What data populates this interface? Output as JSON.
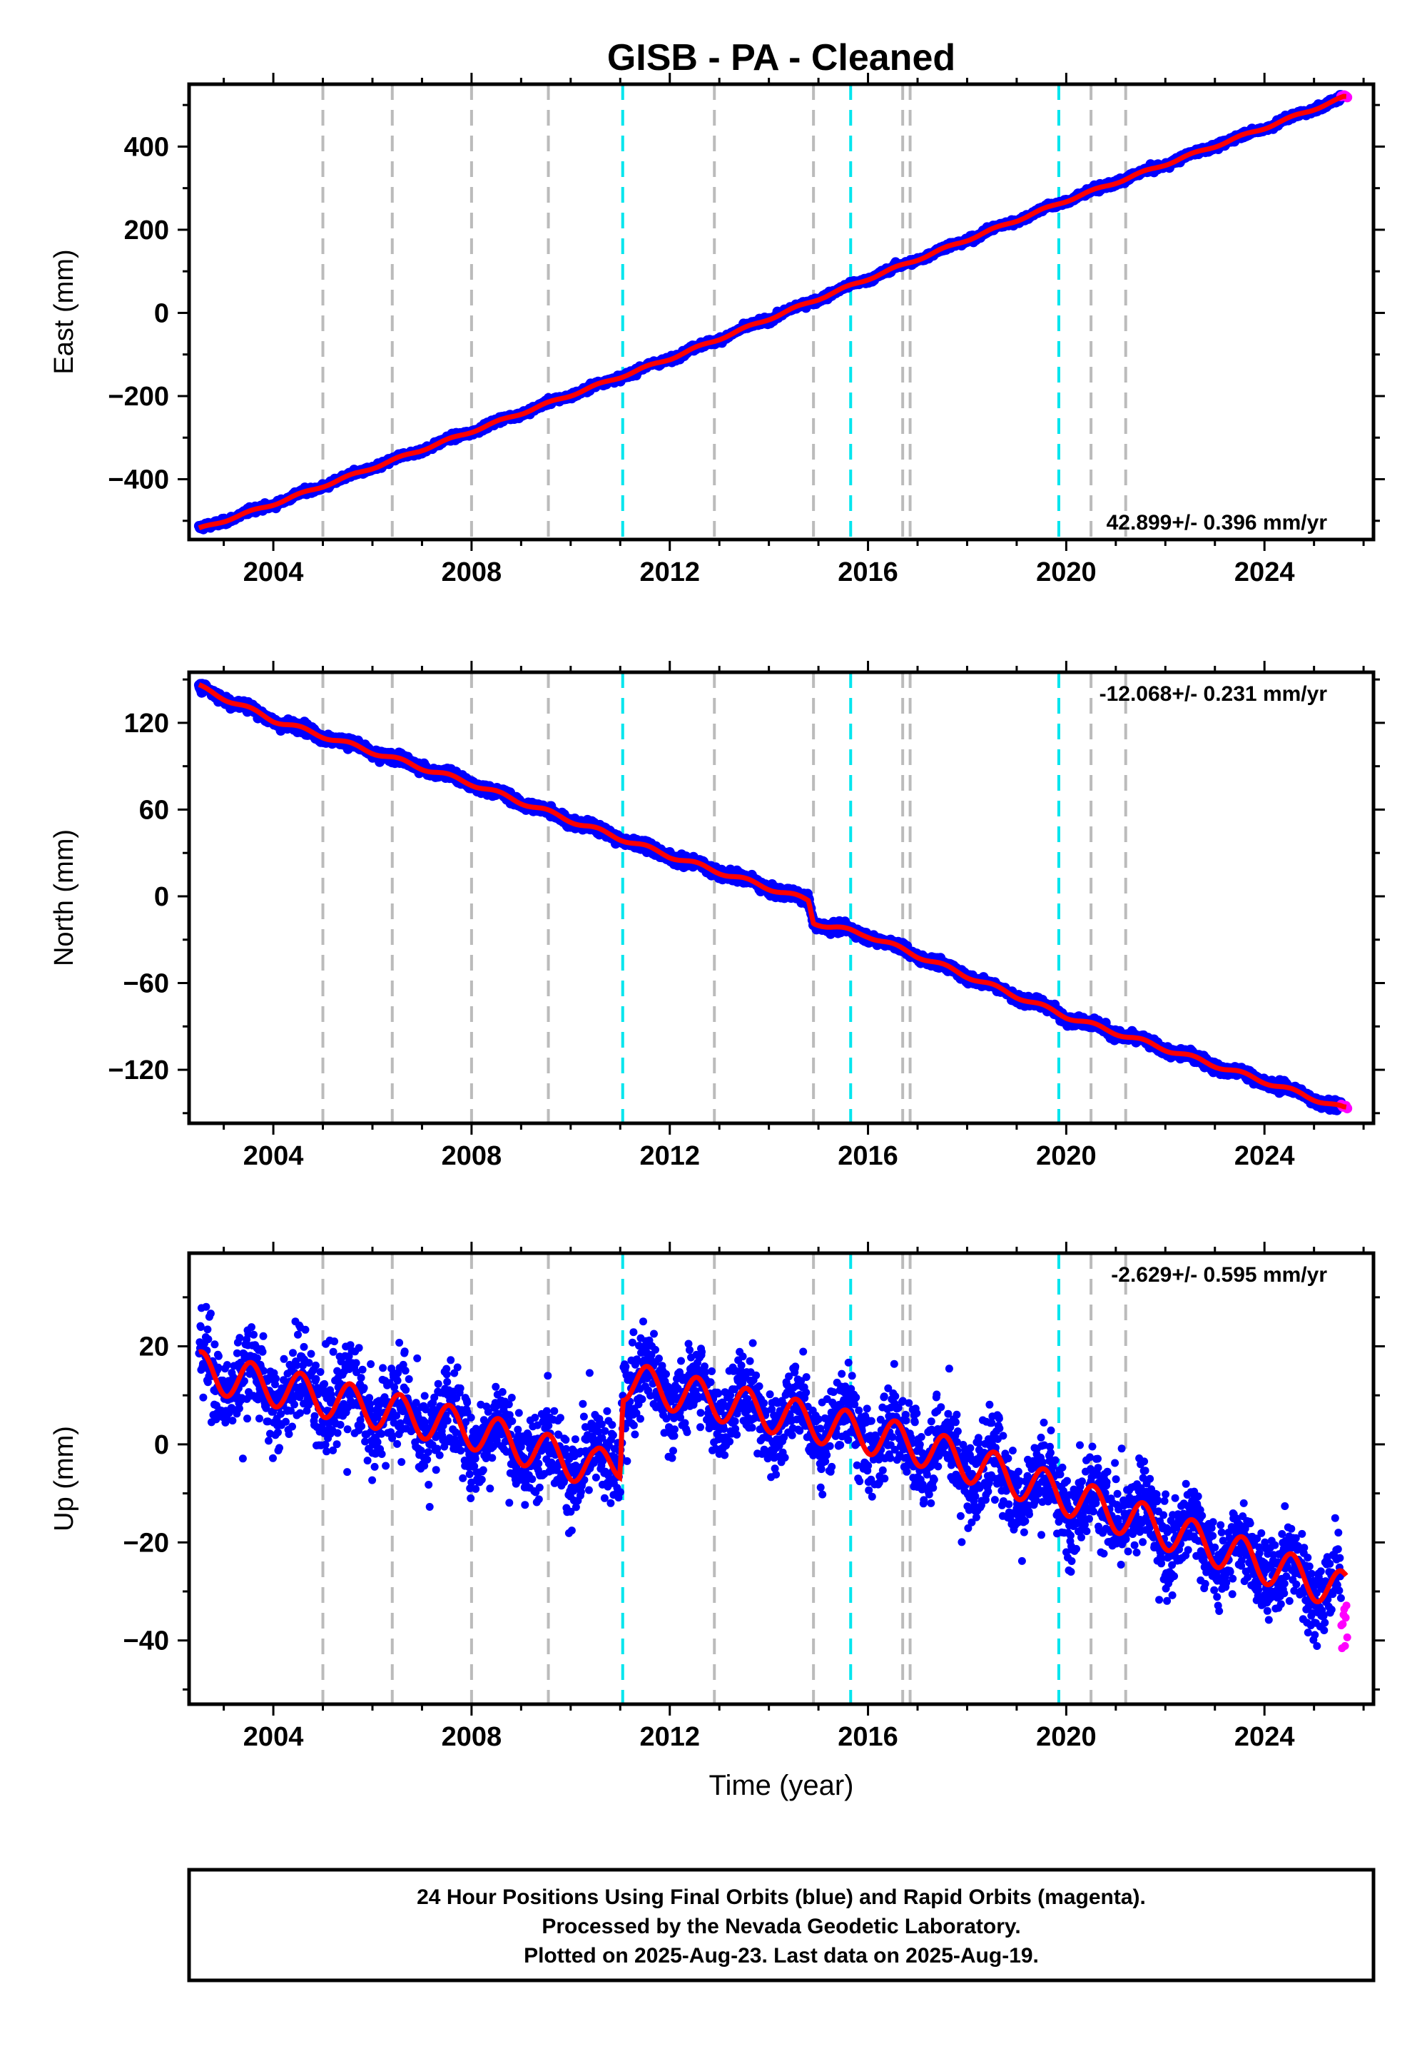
{
  "chart_data": {
    "type": "scatter",
    "title": "GISB  - PA - Cleaned",
    "xlabel": "Time (year)",
    "xlim": [
      2002.3,
      2026.2
    ],
    "x_ticks": [
      2004,
      2008,
      2012,
      2016,
      2020,
      2024
    ],
    "x_tick_labels": [
      "2004",
      "2008",
      "2012",
      "2016",
      "2020",
      "2024"
    ],
    "grid": false,
    "colors": {
      "final_orbits": "#0000ff",
      "rapid_orbits": "#ff00ff",
      "model_fit": "#ff0000",
      "antenna_change_lines": "#bbbbbb",
      "earthquake_lines": "#00e5ee"
    },
    "vertical_lines": {
      "gray_dashed": [
        2005.0,
        2006.4,
        2008.0,
        2009.55,
        2012.9,
        2014.9,
        2016.7,
        2016.85,
        2020.5,
        2021.2
      ],
      "cyan_dashed": [
        2011.05,
        2015.65,
        2019.85
      ]
    },
    "panels": [
      {
        "ylabel": "East (mm)",
        "ylim": [
          -545,
          550
        ],
        "y_ticks": [
          -400,
          -200,
          0,
          200,
          400
        ],
        "y_tick_labels": [
          "−400",
          "−200",
          "0",
          "200",
          "400"
        ],
        "rate_text": "42.899+/- 0.396 mm/yr",
        "rate_position": "bottom-right",
        "rate_mm_per_yr": 42.899,
        "trend_points": [
          [
            2002.5,
            -520
          ],
          [
            2004.0,
            -460
          ],
          [
            2008.0,
            -285
          ],
          [
            2012.0,
            -110
          ],
          [
            2016.0,
            82
          ],
          [
            2020.0,
            270
          ],
          [
            2024.0,
            445
          ],
          [
            2025.6,
            518
          ]
        ],
        "series": [
          {
            "name": "Final Orbits (blue)",
            "color": "#0000ff"
          },
          {
            "name": "Rapid Orbits (magenta)",
            "color": "#ff00ff"
          },
          {
            "name": "model",
            "color": "#ff0000"
          }
        ]
      },
      {
        "ylabel": "North (mm)",
        "ylim": [
          -157,
          155
        ],
        "y_ticks": [
          -120,
          -60,
          0,
          60,
          120
        ],
        "y_tick_labels": [
          "−120",
          "−60",
          "0",
          "60",
          "120"
        ],
        "rate_text": "-12.068+/- 0.231 mm/yr",
        "rate_position": "top-right",
        "rate_mm_per_yr": -12.068,
        "trend_points": [
          [
            2002.5,
            145
          ],
          [
            2004.0,
            122
          ],
          [
            2008.0,
            78
          ],
          [
            2010.2,
            50
          ],
          [
            2012.0,
            28
          ],
          [
            2014.8,
            -3
          ],
          [
            2014.9,
            -18
          ],
          [
            2016.0,
            -27
          ],
          [
            2020.0,
            -83
          ],
          [
            2024.0,
            -128
          ],
          [
            2025.6,
            -147
          ]
        ],
        "series": [
          {
            "name": "Final Orbits (blue)",
            "color": "#0000ff"
          },
          {
            "name": "Rapid Orbits (magenta)",
            "color": "#ff00ff"
          },
          {
            "name": "model",
            "color": "#ff0000"
          }
        ]
      },
      {
        "ylabel": "Up (mm)",
        "ylim": [
          -53,
          39
        ],
        "y_ticks": [
          -40,
          -20,
          0,
          20
        ],
        "y_tick_labels": [
          "−40",
          "−20",
          "0",
          "20"
        ],
        "rate_text": "-2.629+/- 0.595 mm/yr",
        "rate_position": "top-right",
        "rate_mm_per_yr": -2.629,
        "seasonal_amplitude_mm": 4,
        "trend_points": [
          [
            2002.5,
            15
          ],
          [
            2008.0,
            3
          ],
          [
            2010.5,
            -5
          ],
          [
            2011.0,
            -3
          ],
          [
            2011.05,
            13
          ],
          [
            2016.9,
            0
          ],
          [
            2019.85,
            -10
          ],
          [
            2025.6,
            -30
          ]
        ],
        "series": [
          {
            "name": "Final Orbits (blue)",
            "color": "#0000ff"
          },
          {
            "name": "Rapid Orbits (magenta)",
            "color": "#ff00ff"
          },
          {
            "name": "model",
            "color": "#ff0000"
          }
        ]
      }
    ]
  },
  "footer": {
    "line1": "24 Hour Positions Using Final Orbits (blue) and Rapid Orbits (magenta).",
    "line2": "Processed by the Nevada Geodetic Laboratory.",
    "line3": "Plotted on 2025-Aug-23. Last data on 2025-Aug-19."
  }
}
